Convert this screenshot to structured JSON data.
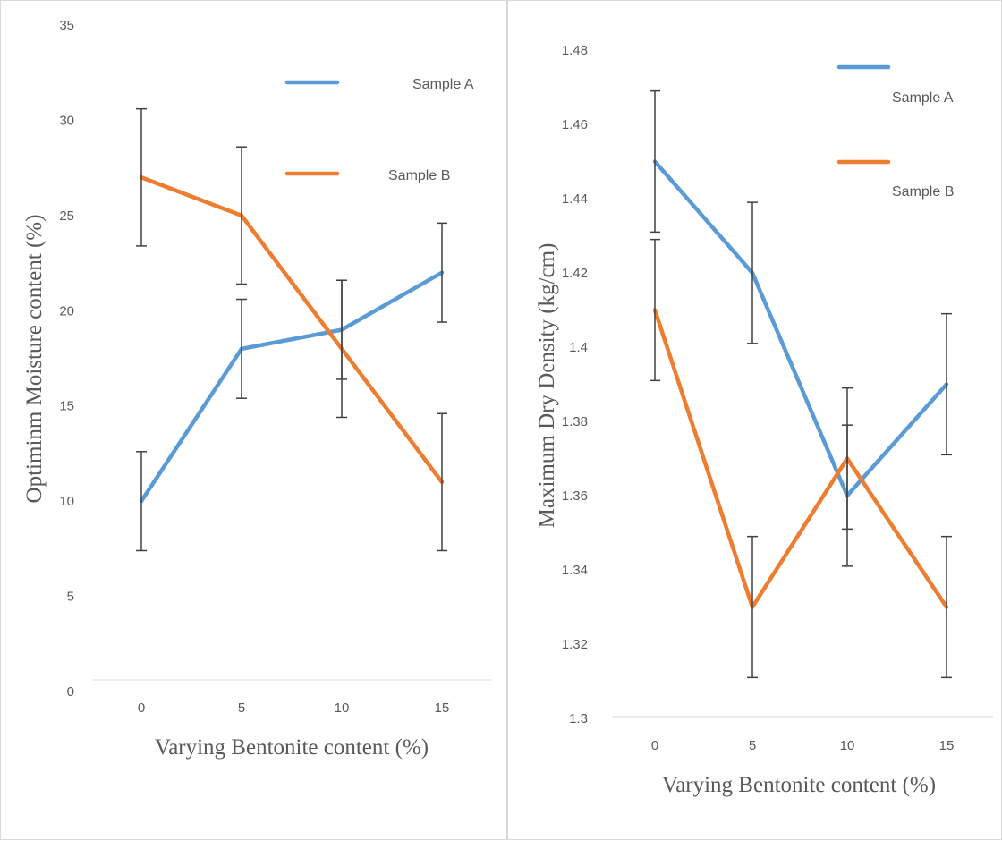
{
  "colors": {
    "sample_a": "#5b9bd5",
    "sample_b": "#ed7d31",
    "error_bar": "#404040",
    "axis": "#d9d9d9"
  },
  "chart_data": [
    {
      "type": "line",
      "title": "",
      "xlabel": "Varying Bentonite content (%)",
      "ylabel": "Optiminm Moisture content (%)",
      "categories": [
        "0",
        "5",
        "10",
        "15"
      ],
      "yticks": [
        "0",
        "5",
        "10",
        "15",
        "20",
        "25",
        "30",
        "35"
      ],
      "ylim": [
        0,
        35
      ],
      "grid": false,
      "legend_position": "top-right",
      "series": [
        {
          "name": "Sample A",
          "values": [
            10,
            18,
            19,
            22
          ],
          "error": [
            2.6,
            2.6,
            2.6,
            2.6
          ]
        },
        {
          "name": "Sample B",
          "values": [
            27,
            25,
            18,
            11
          ],
          "error": [
            3.6,
            3.6,
            3.6,
            3.6
          ]
        }
      ]
    },
    {
      "type": "line",
      "title": "",
      "xlabel": "Varying Bentonite content (%)",
      "ylabel": "Maximum Dry Density (kg/cm)",
      "categories": [
        "0",
        "5",
        "10",
        "15"
      ],
      "yticks": [
        "1.3",
        "1.32",
        "1.34",
        "1.36",
        "1.38",
        "1.4",
        "1.42",
        "1.44",
        "1.46",
        "1.48"
      ],
      "ylim": [
        1.3,
        1.48
      ],
      "grid": false,
      "legend_position": "top-right",
      "series": [
        {
          "name": "Sample A",
          "values": [
            1.45,
            1.42,
            1.36,
            1.39
          ],
          "error": [
            0.019,
            0.019,
            0.019,
            0.019
          ]
        },
        {
          "name": "Sample B",
          "values": [
            1.41,
            1.33,
            1.37,
            1.33
          ],
          "error": [
            0.019,
            0.019,
            0.019,
            0.019
          ]
        }
      ]
    }
  ]
}
